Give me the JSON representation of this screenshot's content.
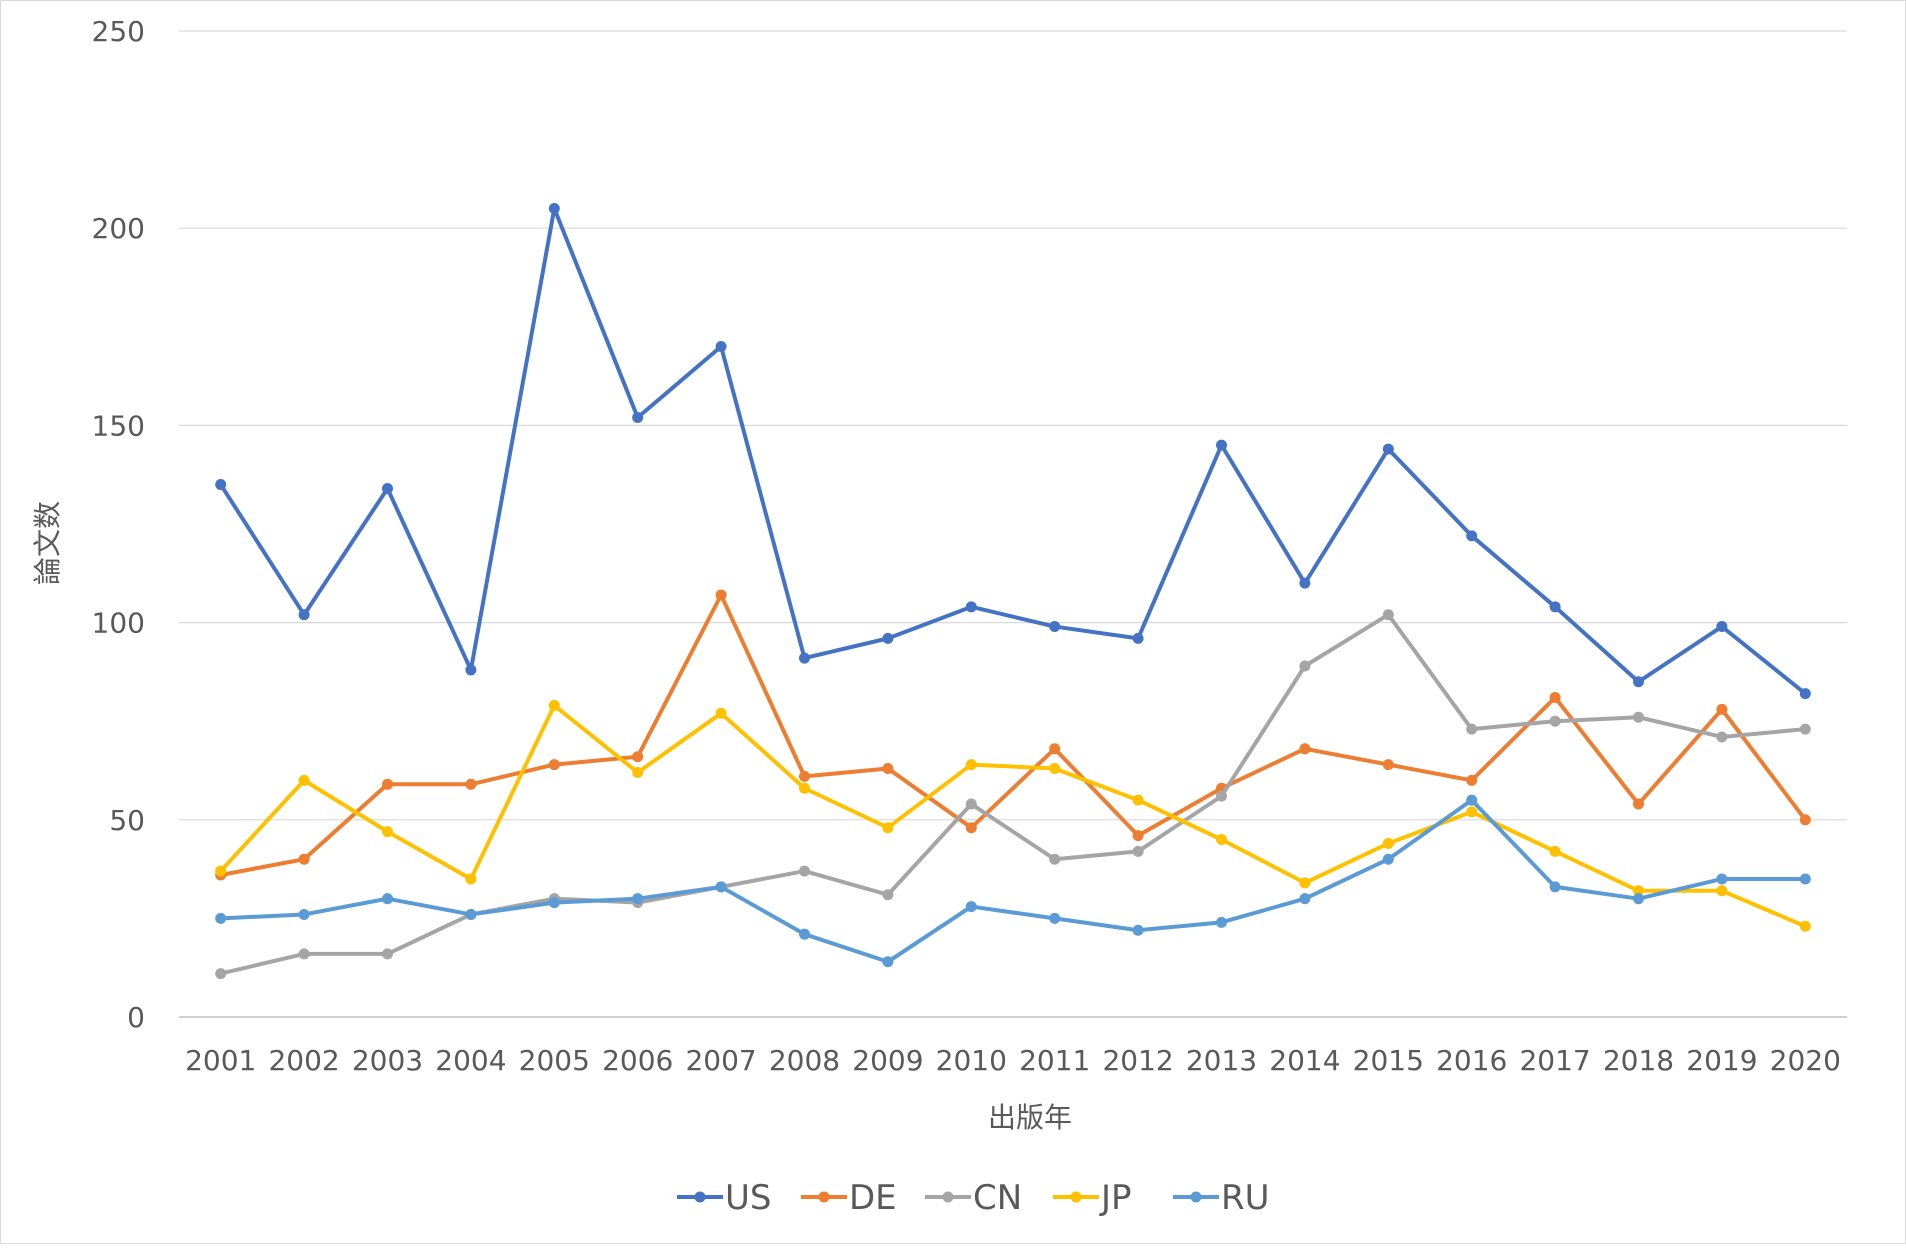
{
  "chart_data": {
    "type": "line",
    "title": "",
    "xlabel": "出版年",
    "ylabel": "論文数",
    "ylim": [
      0,
      250
    ],
    "yticks": [
      0,
      50,
      100,
      150,
      200,
      250
    ],
    "grid": true,
    "legend": "bottom",
    "categories": [
      "2001",
      "2002",
      "2003",
      "2004",
      "2005",
      "2006",
      "2007",
      "2008",
      "2009",
      "2010",
      "2011",
      "2012",
      "2013",
      "2014",
      "2015",
      "2016",
      "2017",
      "2018",
      "2019",
      "2020"
    ],
    "series": [
      {
        "name": "US",
        "color": "#4472c4",
        "values": [
          135,
          102,
          134,
          88,
          205,
          152,
          170,
          91,
          96,
          104,
          99,
          96,
          145,
          110,
          144,
          122,
          104,
          85,
          99,
          82
        ]
      },
      {
        "name": "DE",
        "color": "#ed7d31",
        "values": [
          36,
          40,
          59,
          59,
          64,
          66,
          107,
          61,
          63,
          48,
          68,
          46,
          58,
          68,
          64,
          60,
          81,
          54,
          78,
          50
        ]
      },
      {
        "name": "CN",
        "color": "#a5a5a5",
        "values": [
          11,
          16,
          16,
          26,
          30,
          29,
          33,
          37,
          31,
          54,
          40,
          42,
          56,
          89,
          102,
          73,
          75,
          76,
          71,
          73
        ]
      },
      {
        "name": "JP",
        "color": "#ffc000",
        "values": [
          37,
          60,
          47,
          35,
          79,
          62,
          77,
          58,
          48,
          64,
          63,
          55,
          45,
          34,
          44,
          52,
          42,
          32,
          32,
          23
        ]
      },
      {
        "name": "RU",
        "color": "#5b9bd5",
        "values": [
          25,
          26,
          30,
          26,
          29,
          30,
          33,
          21,
          14,
          28,
          25,
          22,
          24,
          30,
          40,
          55,
          33,
          30,
          35,
          35
        ]
      }
    ]
  }
}
